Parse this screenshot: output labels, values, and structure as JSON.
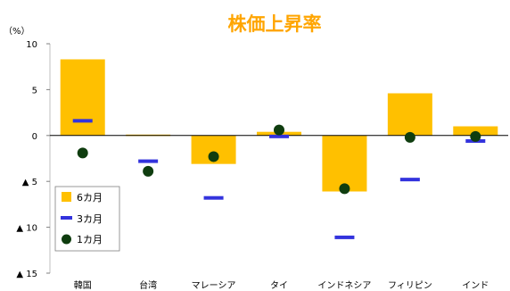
{
  "chart_data": {
    "type": "bar",
    "title": "株価上昇率",
    "unit_label": "（%）",
    "categories": [
      "韓国",
      "台湾",
      "マレーシア",
      "タイ",
      "インドネシア",
      "フィリピン",
      "インド"
    ],
    "ylim": [
      -15,
      10
    ],
    "ticks": [
      {
        "value": 10,
        "label": "10"
      },
      {
        "value": 5,
        "label": "5"
      },
      {
        "value": 0,
        "label": "0"
      },
      {
        "value": -5,
        "label": "▲ 5"
      },
      {
        "value": -10,
        "label": "▲ 10"
      },
      {
        "value": -15,
        "label": "▲ 15"
      }
    ],
    "series": [
      {
        "name": "6カ月",
        "kind": "bar",
        "color": "#ffc000",
        "values": [
          8.3,
          0.1,
          -3.1,
          0.4,
          -6.1,
          4.6,
          1.0
        ]
      },
      {
        "name": "3カ月",
        "kind": "dash",
        "color": "#3333dd",
        "values": [
          1.6,
          -2.8,
          -6.8,
          -0.1,
          -11.1,
          -4.8,
          -0.6
        ]
      },
      {
        "name": "1カ月",
        "kind": "dot",
        "color": "#0f3d0f",
        "values": [
          -1.9,
          -3.9,
          -2.3,
          0.6,
          -5.8,
          -0.2,
          -0.1
        ]
      }
    ],
    "grid": false,
    "legend_position": "bottom-left"
  }
}
